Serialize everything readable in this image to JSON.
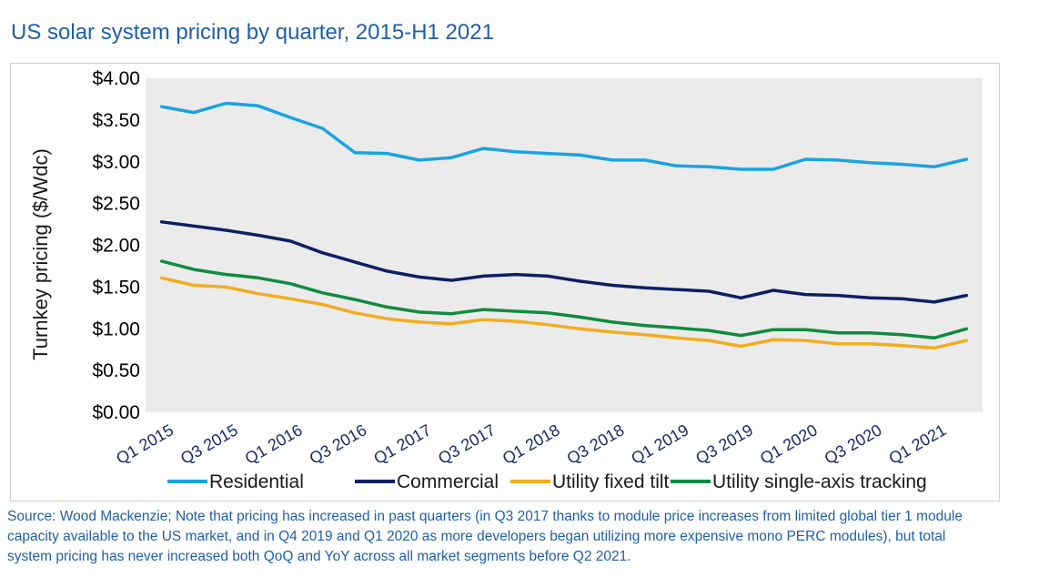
{
  "title": "US solar system pricing by quarter, 2015-H1 2021",
  "chart_data": {
    "type": "line",
    "title": "US solar system pricing by quarter, 2015-H1 2021",
    "ylabel": "Turnkey pricing ($/Wdc)",
    "xlabel": "",
    "ylim": [
      0,
      4
    ],
    "yticks": [
      {
        "value": 0.0,
        "label": "$0.00"
      },
      {
        "value": 0.5,
        "label": "$0.50"
      },
      {
        "value": 1.0,
        "label": "$1.00"
      },
      {
        "value": 1.5,
        "label": "$1.50"
      },
      {
        "value": 2.0,
        "label": "$2.00"
      },
      {
        "value": 2.5,
        "label": "$2.50"
      },
      {
        "value": 3.0,
        "label": "$3.00"
      },
      {
        "value": 3.5,
        "label": "$3.50"
      },
      {
        "value": 4.0,
        "label": "$4.00"
      }
    ],
    "categories": [
      "Q1 2015",
      "Q2 2015",
      "Q3 2015",
      "Q4 2015",
      "Q1 2016",
      "Q2 2016",
      "Q3 2016",
      "Q4 2016",
      "Q1 2017",
      "Q2 2017",
      "Q3 2017",
      "Q4 2017",
      "Q1 2018",
      "Q2 2018",
      "Q3 2018",
      "Q4 2018",
      "Q1 2019",
      "Q2 2019",
      "Q3 2019",
      "Q4 2019",
      "Q1 2020",
      "Q2 2020",
      "Q3 2020",
      "Q4 2020",
      "Q1 2021",
      "Q2 2021"
    ],
    "tick_labels": [
      {
        "index": 0,
        "label": "Q1 2015"
      },
      {
        "index": 2,
        "label": "Q3 2015"
      },
      {
        "index": 4,
        "label": "Q1 2016"
      },
      {
        "index": 6,
        "label": "Q3 2016"
      },
      {
        "index": 8,
        "label": "Q1 2017"
      },
      {
        "index": 10,
        "label": "Q3 2017"
      },
      {
        "index": 12,
        "label": "Q1 2018"
      },
      {
        "index": 14,
        "label": "Q3 2018"
      },
      {
        "index": 16,
        "label": "Q1 2019"
      },
      {
        "index": 18,
        "label": "Q3 2019"
      },
      {
        "index": 20,
        "label": "Q1 2020"
      },
      {
        "index": 22,
        "label": "Q3 2020"
      },
      {
        "index": 24,
        "label": "Q1 2021"
      }
    ],
    "series": [
      {
        "name": "Residential",
        "color": "#1aa3e0",
        "values": [
          3.66,
          3.59,
          3.7,
          3.67,
          3.53,
          3.4,
          3.11,
          3.1,
          3.02,
          3.05,
          3.16,
          3.12,
          3.1,
          3.08,
          3.02,
          3.02,
          2.95,
          2.94,
          2.91,
          2.91,
          3.03,
          3.02,
          2.99,
          2.97,
          2.94,
          3.03
        ]
      },
      {
        "name": "Commercial",
        "color": "#0d1f63",
        "values": [
          2.28,
          2.23,
          2.18,
          2.12,
          2.05,
          1.91,
          1.8,
          1.69,
          1.62,
          1.58,
          1.63,
          1.65,
          1.63,
          1.57,
          1.52,
          1.49,
          1.47,
          1.45,
          1.37,
          1.46,
          1.41,
          1.4,
          1.37,
          1.36,
          1.32,
          1.4
        ]
      },
      {
        "name": "Utility fixed tilt",
        "color": "#f2ac1f",
        "values": [
          1.61,
          1.52,
          1.5,
          1.42,
          1.36,
          1.29,
          1.19,
          1.12,
          1.08,
          1.06,
          1.11,
          1.09,
          1.05,
          1.0,
          0.96,
          0.93,
          0.89,
          0.86,
          0.79,
          0.87,
          0.86,
          0.82,
          0.82,
          0.8,
          0.77,
          0.86
        ]
      },
      {
        "name": "Utility single-axis tracking",
        "color": "#118a3f",
        "values": [
          1.81,
          1.71,
          1.65,
          1.61,
          1.54,
          1.43,
          1.35,
          1.26,
          1.2,
          1.18,
          1.23,
          1.21,
          1.19,
          1.14,
          1.08,
          1.04,
          1.01,
          0.98,
          0.92,
          0.99,
          0.99,
          0.95,
          0.95,
          0.93,
          0.89,
          1.0
        ]
      }
    ],
    "grid": false,
    "legend_position": "bottom"
  },
  "source_note": "Source: Wood Mackenzie; Note that pricing has increased in past quarters (in Q3 2017 thanks to module price increases from limited global tier 1 module capacity available to the US market, and in Q4 2019 and Q1 2020 as more developers began utilizing more expensive mono PERC modules), but total system pricing has never increased both QoQ and YoY across all market segments before Q2 2021."
}
